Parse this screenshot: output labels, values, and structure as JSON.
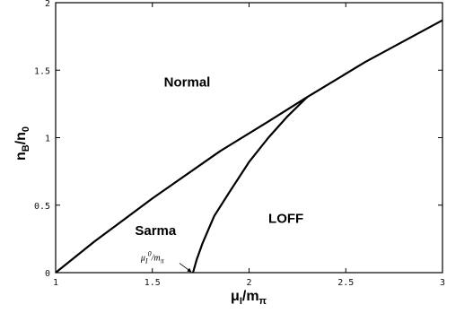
{
  "chart_data": {
    "type": "line",
    "title": "",
    "xlabel_parts": {
      "base": "μ",
      "sub": "I",
      "mid": "/m",
      "sub2": "π"
    },
    "ylabel_parts": {
      "base": "n",
      "sub": "B",
      "mid": "/n",
      "sub2": "0"
    },
    "xlim": [
      1,
      3
    ],
    "ylim": [
      0,
      2
    ],
    "xticks": [
      1,
      1.5,
      2,
      2.5,
      3
    ],
    "xtick_labels": [
      "1",
      "1.5",
      "2",
      "2.5",
      "3"
    ],
    "yticks": [
      0,
      0.5,
      1,
      1.5,
      2
    ],
    "ytick_labels": [
      "0",
      "0.5",
      "1",
      "1.5",
      "2"
    ],
    "grid": false,
    "series": [
      {
        "x": [
          1.0,
          1.2,
          1.5,
          1.85,
          2.1,
          2.3,
          2.6,
          3.0
        ],
        "y": [
          0.0,
          0.23,
          0.55,
          0.9,
          1.12,
          1.3,
          1.56,
          1.87
        ]
      },
      {
        "x": [
          1.71,
          1.73,
          1.76,
          1.82,
          1.9,
          2.0,
          2.1,
          2.2,
          2.3
        ],
        "y": [
          0.0,
          0.1,
          0.22,
          0.42,
          0.6,
          0.82,
          1.0,
          1.16,
          1.3
        ]
      }
    ],
    "annotations": [
      {
        "text": "Normal",
        "x": 1.56,
        "y": 1.38
      },
      {
        "text": "Sarma",
        "x": 1.41,
        "y": 0.28
      },
      {
        "text": "LOFF",
        "x": 2.1,
        "y": 0.37
      }
    ],
    "point_annotation": {
      "parts": {
        "base": "μ",
        "sub": "I",
        "sup": "0",
        "mid": "/m",
        "sub2": "π"
      },
      "label_x": 1.5,
      "label_y": 0.09,
      "arrow_from": [
        1.64,
        0.07
      ],
      "arrow_to": [
        1.7,
        0.0
      ]
    }
  },
  "colors": {
    "line": "#000000",
    "background": "#ffffff"
  }
}
